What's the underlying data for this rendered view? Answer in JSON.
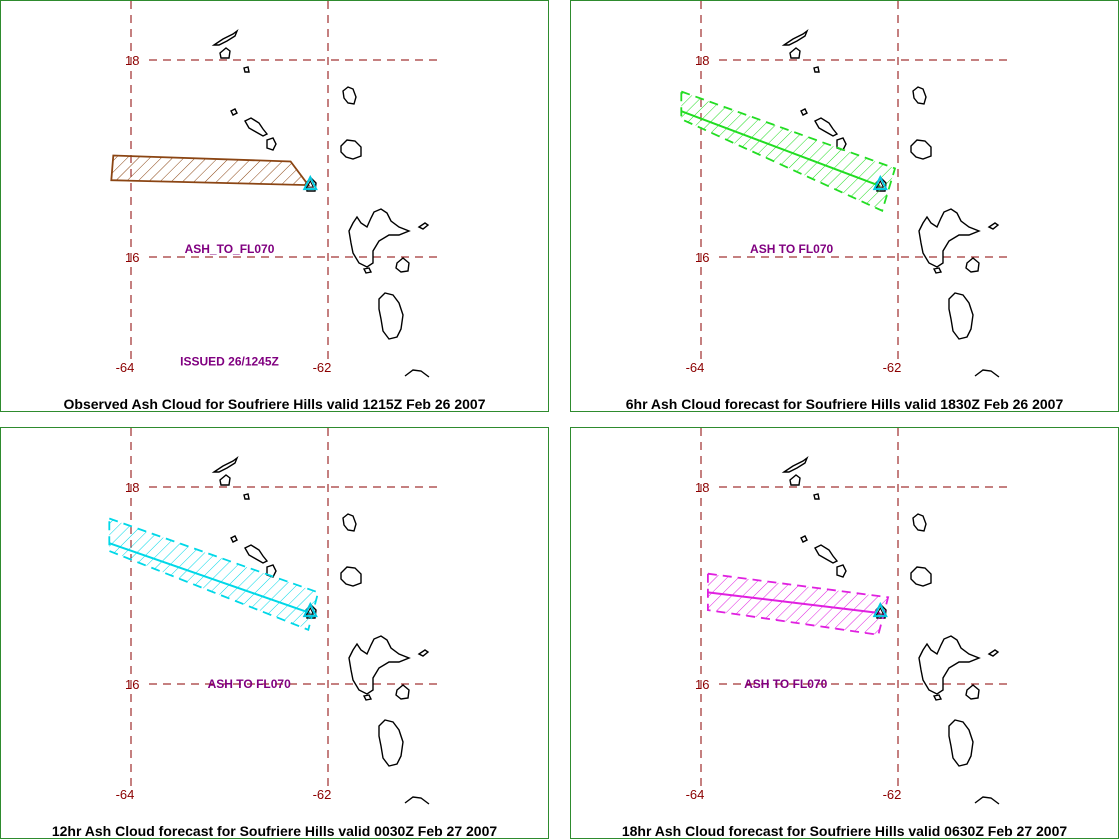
{
  "colors": {
    "border": "#2e8b2e",
    "grid": "#8b0000",
    "axis_label": "#8b0000",
    "annotation": "#800080",
    "coast": "#000000",
    "volcano": "#00c8e0"
  },
  "map_axes": {
    "lat_labels": [
      {
        "value": 18,
        "text": "18"
      },
      {
        "value": 16,
        "text": "16"
      }
    ],
    "lon_labels": [
      {
        "value": -64,
        "text": "-64"
      },
      {
        "value": -62,
        "text": "-62"
      }
    ]
  },
  "volcano": {
    "name": "Soufriere Hills",
    "lon": -62.18,
    "lat": 16.72
  },
  "panels": [
    {
      "id": "observed",
      "caption": "Observed Ash Cloud for Soufriere  Hills valid 1215Z Feb 26 2007",
      "level_label": "ASH_TO_FL070",
      "level_pos": {
        "lon": -63.0,
        "lat": 16.04
      },
      "issued_label": "ISSUED 26/1245Z",
      "issued_pos": {
        "lon": -63.0,
        "lat": 14.9
      },
      "cloud_color": "#8b4513",
      "cloud_style": "solid",
      "cloud_polygon": [
        [
          -64.18,
          17.03
        ],
        [
          -62.38,
          16.97
        ],
        [
          -62.2,
          16.73
        ],
        [
          -64.2,
          16.78
        ]
      ],
      "trajectory": null
    },
    {
      "id": "6hr",
      "caption": "6hr Ash Cloud forecast for Soufriere  Hills valid 1830Z Feb 26 2007",
      "level_label": "ASH TO FL070",
      "level_pos": {
        "lon": -63.08,
        "lat": 16.04
      },
      "issued_label": "",
      "cloud_color": "#22dd22",
      "cloud_style": "dashed",
      "cloud_polygon": [
        [
          -64.2,
          17.68
        ],
        [
          -62.03,
          16.9
        ],
        [
          -62.16,
          16.47
        ],
        [
          -64.2,
          17.4
        ]
      ],
      "trajectory": [
        [
          -64.2,
          17.48
        ],
        [
          -62.18,
          16.72
        ]
      ]
    },
    {
      "id": "12hr",
      "caption": "12hr Ash Cloud forecast for Soufriere  Hills valid 0030Z Feb 27 2007",
      "level_label": "ASH TO FL070",
      "level_pos": {
        "lon": -62.8,
        "lat": 15.96
      },
      "issued_label": "",
      "cloud_color": "#00d8e8",
      "cloud_style": "dashed",
      "cloud_polygon": [
        [
          -64.22,
          17.68
        ],
        [
          -62.1,
          16.93
        ],
        [
          -62.2,
          16.55
        ],
        [
          -64.22,
          17.35
        ]
      ],
      "trajectory": [
        [
          -64.22,
          17.43
        ],
        [
          -62.18,
          16.72
        ]
      ]
    },
    {
      "id": "18hr",
      "caption": "18hr Ash Cloud forecast for Soufriere  Hills valid 0630Z Feb 27 2007",
      "level_label": "ASH TO FL070",
      "level_pos": {
        "lon": -63.14,
        "lat": 15.96
      },
      "issued_label": "",
      "cloud_color": "#e020e0",
      "cloud_style": "dashed",
      "cloud_polygon": [
        [
          -63.93,
          17.12
        ],
        [
          -62.1,
          16.88
        ],
        [
          -62.2,
          16.5
        ],
        [
          -63.93,
          16.75
        ]
      ],
      "trajectory": [
        [
          -63.93,
          16.93
        ],
        [
          -62.18,
          16.72
        ]
      ]
    }
  ]
}
